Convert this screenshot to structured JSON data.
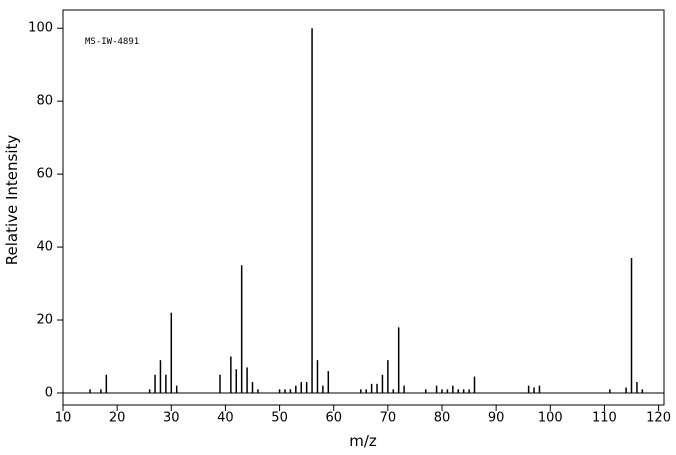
{
  "chart_data": {
    "type": "stem",
    "annotation": "MS-IW-4891",
    "x_label": "m/z",
    "y_label": "Relative Intensity",
    "x": [
      15,
      17,
      18,
      26,
      27,
      28,
      29,
      30,
      31,
      39,
      41,
      42,
      43,
      44,
      45,
      46,
      50,
      51,
      52,
      53,
      54,
      55,
      56,
      57,
      58,
      59,
      65,
      66,
      67,
      68,
      69,
      70,
      71,
      72,
      73,
      77,
      79,
      80,
      81,
      82,
      83,
      84,
      85,
      86,
      96,
      97,
      98,
      111,
      114,
      115,
      116,
      117
    ],
    "values": [
      1,
      1,
      5,
      1,
      5,
      9,
      5,
      22,
      2,
      5,
      10,
      6.5,
      35,
      7,
      3,
      1,
      1,
      1,
      1,
      2,
      3,
      3,
      100,
      9,
      2,
      6,
      1,
      1,
      2.5,
      2.5,
      5,
      9,
      1,
      18,
      2,
      1,
      2,
      1,
      1,
      2,
      1,
      1,
      1,
      4.5,
      2,
      1.5,
      2,
      1,
      1.5,
      37,
      3,
      1
    ],
    "color": "#000000",
    "xlim": [
      10,
      121
    ],
    "ylim": [
      -3.3,
      105
    ],
    "xticks": [
      10,
      20,
      30,
      40,
      50,
      60,
      70,
      80,
      90,
      100,
      110,
      120
    ],
    "yticks": [
      0,
      20,
      40,
      60,
      80,
      100
    ]
  }
}
